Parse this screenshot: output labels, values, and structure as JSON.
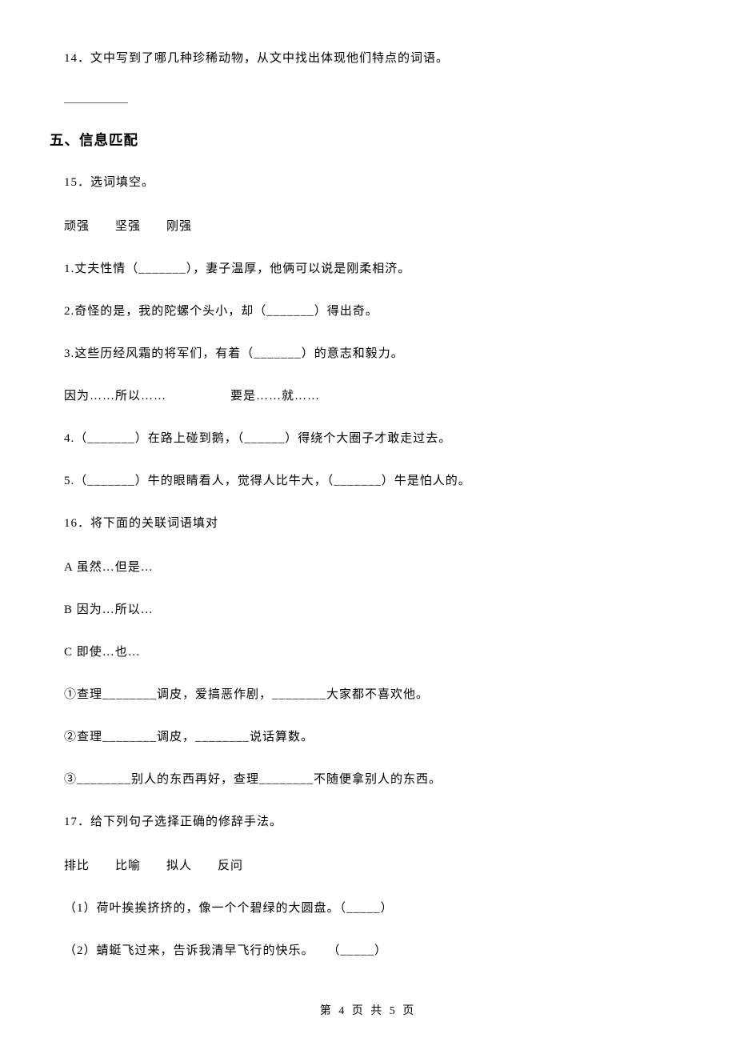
{
  "q14": {
    "text": "14．文中写到了哪几种珍稀动物，从文中找出体现他们特点的词语。"
  },
  "section5": {
    "heading": "五、信息匹配"
  },
  "q15": {
    "title": "15．选词填空。",
    "bank1": "顽强　　坚强　　刚强",
    "item1": "1.丈夫性情（_______），妻子温厚，他俩可以说是刚柔相济。",
    "item2": "2.奇怪的是，我的陀螺个头小，却（_______）得出奇。",
    "item3": "3.这些历经风霜的将军们，有着（_______）的意志和毅力。",
    "bank2": "因为……所以……　　　　　要是……就……",
    "item4": "4.（_______）在路上碰到鹅，（______）得绕个大圈子才敢走过去。",
    "item5": "5.（_______）牛的眼睛看人，觉得人比牛大，（_______）牛是怕人的。"
  },
  "q16": {
    "title": "16．将下面的关联词语填对",
    "optA": "A 虽然…但是…",
    "optB": "B 因为…所以…",
    "optC": "C 即使…也…",
    "item1": "①查理________调皮，爱搞恶作剧，________大家都不喜欢他。",
    "item2": "②查理________调皮，________说话算数。",
    "item3": "③________别人的东西再好，查理________不随便拿别人的东西。"
  },
  "q17": {
    "title": "17．给下列句子选择正确的修辞手法。",
    "bank": "排比　　比喻　　拟人　　反问",
    "item1": "（1）荷叶挨挨挤挤的，像一个个碧绿的大圆盘。（_____）",
    "item2": "（2）蜻蜓飞过来，告诉我清早飞行的快乐。　　（_____）"
  },
  "footer": {
    "text": "第 4 页 共 5 页"
  }
}
